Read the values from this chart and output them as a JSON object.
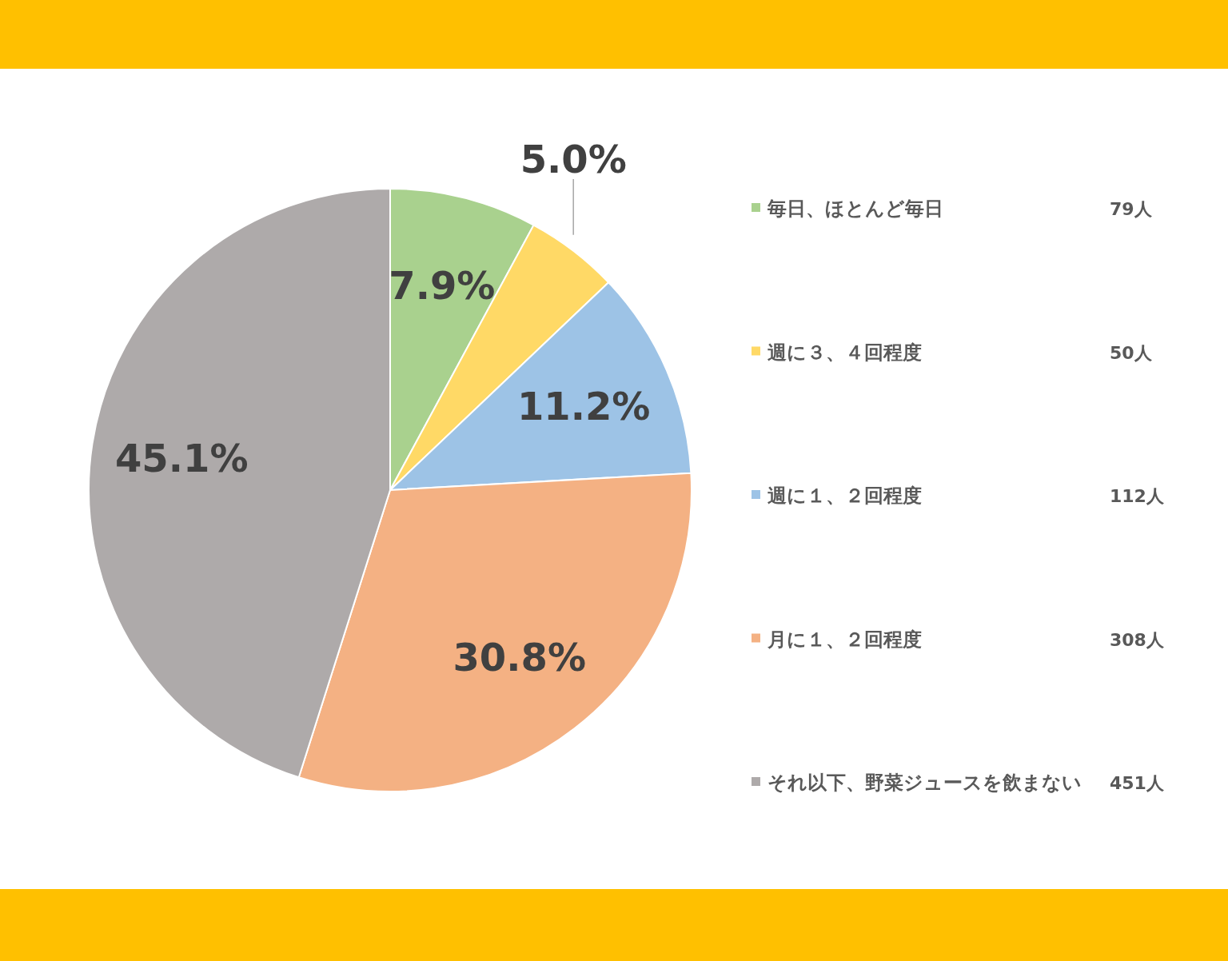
{
  "chart_data": {
    "type": "pie",
    "categories": [
      "毎日、ほとんど毎日",
      "週に３、４回程度",
      "週に１、２回程度",
      "月に１、２回程度",
      "それ以下、野菜ジュースを飲まない"
    ],
    "values": [
      7.9,
      5.0,
      11.2,
      30.8,
      45.1
    ],
    "value_labels": [
      "7.9%",
      "5.0%",
      "11.2%",
      "30.8%",
      "45.1%"
    ],
    "colors": [
      "#a9d18e",
      "#ffd966",
      "#9dc3e6",
      "#f4b183",
      "#aeaaaa"
    ],
    "annotations": [
      "79人",
      "50人",
      "112人",
      "308人",
      "451人"
    ],
    "legend": "right"
  }
}
